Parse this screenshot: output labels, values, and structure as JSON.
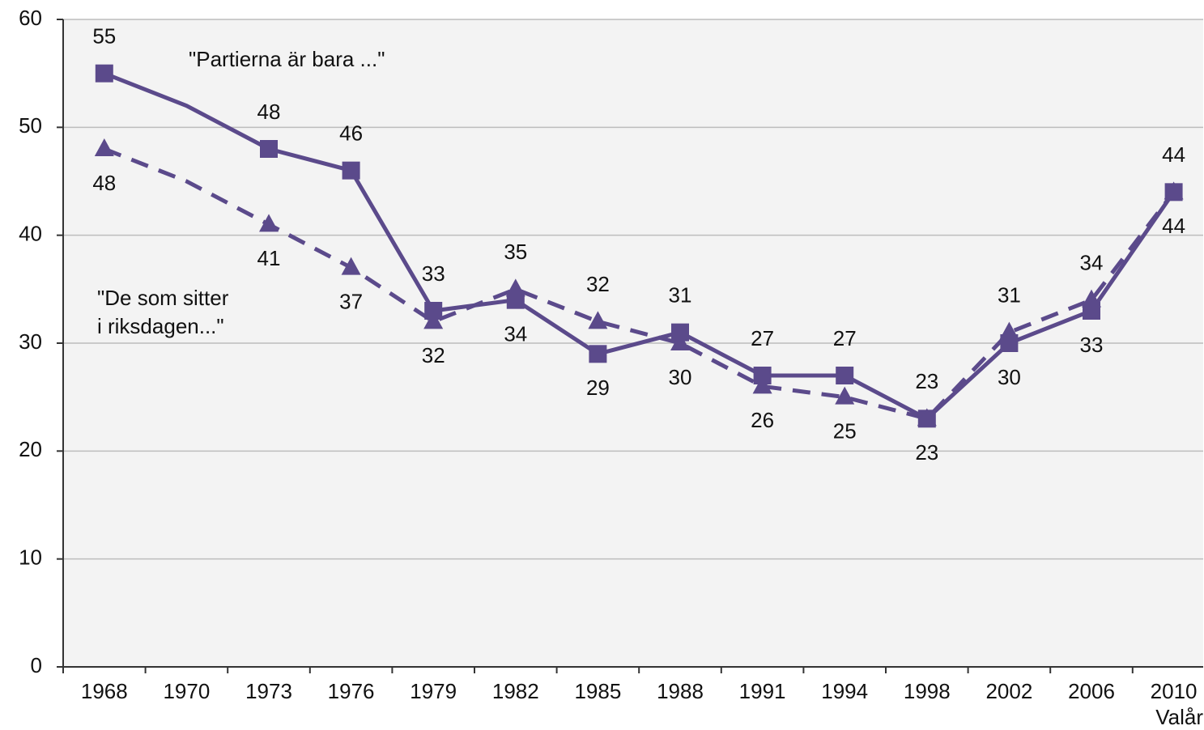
{
  "chart_data": {
    "type": "line",
    "categories": [
      "1968",
      "1970",
      "1973",
      "1976",
      "1979",
      "1982",
      "1985",
      "1988",
      "1991",
      "1994",
      "1998",
      "2002",
      "2006",
      "2010"
    ],
    "x_label": "Valår",
    "ylim": [
      0,
      60
    ],
    "yticks": [
      0,
      10,
      20,
      30,
      40,
      50,
      60
    ],
    "grid": true,
    "annotations": [
      {
        "lines": [
          "\"Partierna är bara ...\""
        ]
      },
      {
        "lines": [
          "\"De som sitter",
          "i riksdagen...\""
        ]
      }
    ],
    "series": [
      {
        "name": "\"Partierna är bara ...\"",
        "color": "#5b4a8b",
        "style": "solid",
        "marker": "square",
        "values": [
          55,
          52,
          48,
          46,
          33,
          34,
          29,
          31,
          27,
          27,
          23,
          30,
          33,
          44
        ],
        "value_labels": [
          "55",
          null,
          "48",
          "46",
          "33",
          "34",
          "29",
          "31",
          "27",
          "27",
          "23",
          "30",
          "33",
          "44"
        ]
      },
      {
        "name": "\"De som sitter i riksdagen...\"",
        "color": "#5b4a8b",
        "style": "dashed",
        "marker": "triangle",
        "values": [
          48,
          45,
          41,
          37,
          32,
          35,
          32,
          30,
          26,
          25,
          23,
          31,
          34,
          44
        ],
        "value_labels": [
          "48",
          null,
          "41",
          "37",
          "32",
          "35",
          "32",
          "30",
          "26",
          "25",
          "23",
          "31",
          "34",
          "44"
        ]
      }
    ]
  }
}
